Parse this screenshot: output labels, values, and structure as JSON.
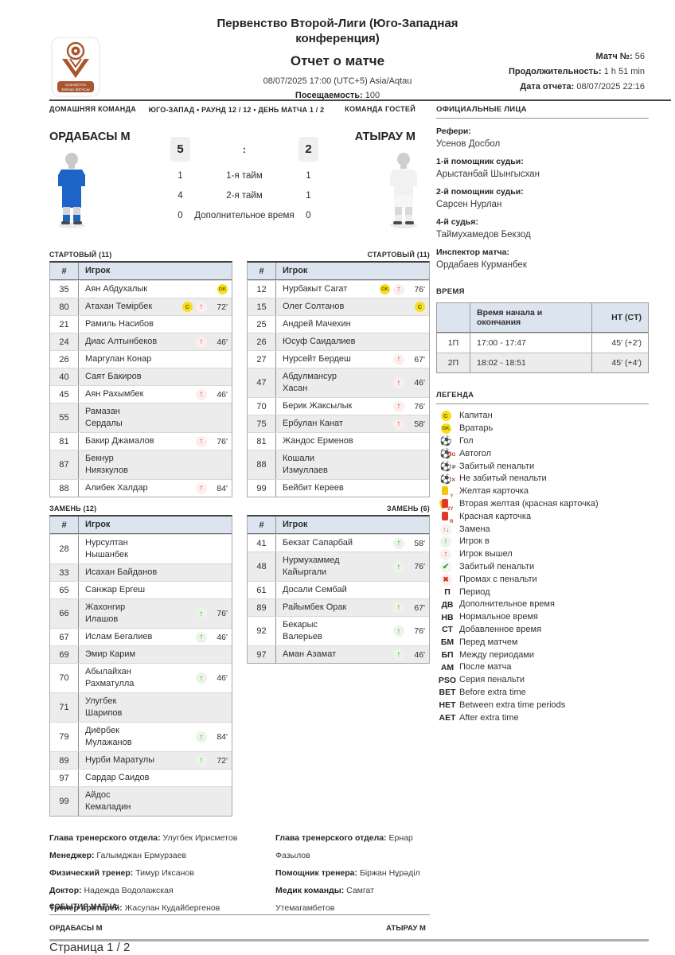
{
  "header": {
    "title": "Первенство Второй-Лиги (Юго-Западная конференция)",
    "subtitle": "Отчет о матче",
    "datetime": "08/07/2025 17:00 (UTC+5) Asia/Aqtau",
    "attendance_label": "Посещаемость:",
    "attendance_value": "100",
    "match_no_label": "Матч №:",
    "match_no_value": "56",
    "duration_label": "Продолжительность:",
    "duration_value": "1 h 51 min",
    "report_date_label": "Дата отчета:",
    "report_date_value": "08/07/2025 22:16",
    "logo_text_line1": "ҚАЗАҚСТАН",
    "logo_text_line2": "ЕКІНШІ ЛИГАСЫ"
  },
  "match": {
    "home_label": "ДОМАШНЯЯ КОМАНДА",
    "away_label": "КОМАНДА ГОСТЕЙ",
    "home_team": "ОРДАБАСЫ М",
    "away_team": "АТЫРАУ М",
    "round_info": "ЮГО-ЗАПАД • РАУНД 12 / 12 • ДЕНЬ МАТЧА 1 / 2",
    "home_score": "5",
    "away_score": "2",
    "score_separator": ":",
    "periods": [
      {
        "home": "1",
        "label": "1-я тайм",
        "away": "1"
      },
      {
        "home": "4",
        "label": "2-я тайм",
        "away": "1"
      },
      {
        "home": "0",
        "label": "Дополнительное время",
        "away": "0"
      }
    ]
  },
  "officials": {
    "title": "ОФИЦИАЛЬНЫЕ ЛИЦА",
    "entries": [
      {
        "role": "Рефери:",
        "name": "Усенов Досбол"
      },
      {
        "role": "1-й помощник судьи:",
        "name": "Арыстанбай Шынгысхан"
      },
      {
        "role": "2-й помощник судьи:",
        "name": "Сарсен Нурлан"
      },
      {
        "role": "4-й судья:",
        "name": "Таймухамедов Бекзод"
      },
      {
        "role": "Инспектор матча:",
        "name": "Ордабаев Курманбек"
      }
    ]
  },
  "time": {
    "title": "ВРЕМЯ",
    "col_time": "Время начала и окончания",
    "col_ht": "HT (CT)",
    "rows": [
      {
        "period": "1П",
        "time": "17:00 - 17:47",
        "ht": "45' (+2')"
      },
      {
        "period": "2П",
        "time": "18:02 - 18:51",
        "ht": "45' (+4')"
      }
    ]
  },
  "legend": {
    "title": "ЛЕГЕНДА",
    "items": [
      {
        "icon": "captain",
        "label": "Капитан"
      },
      {
        "icon": "goalkeeper",
        "label": "Вратарь"
      },
      {
        "icon": "goal",
        "label": "Гол"
      },
      {
        "icon": "own-goal",
        "label": "Автогол"
      },
      {
        "icon": "penalty-scored-ball",
        "label": "Забитый пенальти"
      },
      {
        "icon": "penalty-missed-ball",
        "label": "Не забитый пенальти"
      },
      {
        "icon": "yellow-card",
        "label": "Желтая карточка"
      },
      {
        "icon": "second-yellow-card",
        "label": "Вторая желтая (красная карточка)"
      },
      {
        "icon": "red-card",
        "label": "Красная карточка"
      },
      {
        "icon": "substitution",
        "label": "Замена"
      },
      {
        "icon": "player-in",
        "label": "Игрок в"
      },
      {
        "icon": "player-out",
        "label": "Игрок вышел"
      },
      {
        "icon": "penalty-scored-check",
        "label": "Забитый пенальти"
      },
      {
        "icon": "penalty-missed-cross",
        "label": "Промах с пенальти"
      },
      {
        "code": "П",
        "label": "Период"
      },
      {
        "code": "ДВ",
        "label": "Дополнительное время"
      },
      {
        "code": "НВ",
        "label": "Нормальное время"
      },
      {
        "code": "СТ",
        "label": "Добавленное время"
      },
      {
        "code": "БМ",
        "label": "Перед матчем"
      },
      {
        "code": "БП",
        "label": "Между периодами"
      },
      {
        "code": "АМ",
        "label": "После матча"
      },
      {
        "code": "PSO",
        "label": "Серия пенальти"
      },
      {
        "code": "BET",
        "label": "Before extra time"
      },
      {
        "code": "HET",
        "label": "Between extra time periods"
      },
      {
        "code": "AET",
        "label": "After extra time"
      }
    ]
  },
  "lineups": {
    "col_num": "#",
    "col_player": "Игрок",
    "home_starting_label": "СТАРТОВЫЙ (11)",
    "away_starting_label": "СТАРТОВЫЙ (11)",
    "home_subs_label": "ЗАМЕНЬ (12)",
    "away_subs_label": "ЗАМЕНЬ (6)",
    "home_starting": [
      {
        "num": "35",
        "name": "Аян Абдухалык",
        "badges": [
          "gk"
        ],
        "move": "",
        "minute": ""
      },
      {
        "num": "80",
        "name": "Атахан Темірбек",
        "badges": [
          "c"
        ],
        "move": "out",
        "minute": "72'"
      },
      {
        "num": "21",
        "name": "Рамиль Насибов",
        "badges": [],
        "move": "",
        "minute": ""
      },
      {
        "num": "24",
        "name": "Диас Алтынбеков",
        "badges": [],
        "move": "out",
        "minute": "46'"
      },
      {
        "num": "26",
        "name": "Маргулан Конар",
        "badges": [],
        "move": "",
        "minute": ""
      },
      {
        "num": "40",
        "name": "Саят Бакиров",
        "badges": [],
        "move": "",
        "minute": ""
      },
      {
        "num": "45",
        "name": "Аян Рахымбек",
        "badges": [],
        "move": "out",
        "minute": "46'"
      },
      {
        "num": "55",
        "name": "Рамазан\nСердалы",
        "badges": [],
        "move": "",
        "minute": ""
      },
      {
        "num": "81",
        "name": "Бакир Джамалов",
        "badges": [],
        "move": "out",
        "minute": "76'"
      },
      {
        "num": "87",
        "name": "Бекнур\nНиязкулов",
        "badges": [],
        "move": "",
        "minute": ""
      },
      {
        "num": "88",
        "name": "Алибек Халдар",
        "badges": [],
        "move": "out",
        "minute": "84'"
      }
    ],
    "away_starting": [
      {
        "num": "12",
        "name": "Нурбакыт Сагат",
        "badges": [
          "gk"
        ],
        "move": "out",
        "minute": "76'"
      },
      {
        "num": "15",
        "name": "Олег Солтанов",
        "badges": [
          "c"
        ],
        "move": "",
        "minute": ""
      },
      {
        "num": "25",
        "name": "Андрей Мачехин",
        "badges": [],
        "move": "",
        "minute": ""
      },
      {
        "num": "26",
        "name": "Юсуф Саидалиев",
        "badges": [],
        "move": "",
        "minute": ""
      },
      {
        "num": "27",
        "name": "Нурсейт Бердеш",
        "badges": [],
        "move": "out",
        "minute": "67'"
      },
      {
        "num": "47",
        "name": "Абдулмансур\nХасан",
        "badges": [],
        "move": "out",
        "minute": "46'"
      },
      {
        "num": "70",
        "name": "Берик Жаксылык",
        "badges": [],
        "move": "out",
        "minute": "76'"
      },
      {
        "num": "75",
        "name": "Ербулан Канат",
        "badges": [],
        "move": "out",
        "minute": "58'"
      },
      {
        "num": "81",
        "name": "Жандос Ерменов",
        "badges": [],
        "move": "",
        "minute": ""
      },
      {
        "num": "88",
        "name": "Кошали\nИзмуллаев",
        "badges": [],
        "move": "",
        "minute": ""
      },
      {
        "num": "99",
        "name": "Бейбит Кереев",
        "badges": [],
        "move": "",
        "minute": ""
      }
    ],
    "home_subs": [
      {
        "num": "28",
        "name": "Нурсултан\nНышанбек",
        "badges": [],
        "move": "",
        "minute": ""
      },
      {
        "num": "33",
        "name": "Исахан Байданов",
        "badges": [],
        "move": "",
        "minute": ""
      },
      {
        "num": "65",
        "name": "Санжар Ергеш",
        "badges": [],
        "move": "",
        "minute": ""
      },
      {
        "num": "66",
        "name": "Жахонгир\nИлашов",
        "badges": [],
        "move": "in",
        "minute": "76'"
      },
      {
        "num": "67",
        "name": "Ислам Бегалиев",
        "badges": [],
        "move": "in",
        "minute": "46'"
      },
      {
        "num": "69",
        "name": "Эмир Карим",
        "badges": [],
        "move": "",
        "minute": ""
      },
      {
        "num": "70",
        "name": "Абылайхан\nРахматулла",
        "badges": [],
        "move": "in",
        "minute": "46'"
      },
      {
        "num": "71",
        "name": "Улугбек\nШарипов",
        "badges": [],
        "move": "",
        "minute": ""
      },
      {
        "num": "79",
        "name": "Диёрбек\nМулажанов",
        "badges": [],
        "move": "in",
        "minute": "84'"
      },
      {
        "num": "89",
        "name": "Нурби Маратулы",
        "badges": [],
        "move": "in",
        "minute": "72'"
      },
      {
        "num": "97",
        "name": "Сардар Саидов",
        "badges": [],
        "move": "",
        "minute": ""
      },
      {
        "num": "99",
        "name": "Айдос\nКемаладин",
        "badges": [],
        "move": "",
        "minute": ""
      }
    ],
    "away_subs": [
      {
        "num": "41",
        "name": "Бекзат Сапарбай",
        "badges": [],
        "move": "in",
        "minute": "58'"
      },
      {
        "num": "48",
        "name": "Нурмухаммед\nКайыргали",
        "badges": [],
        "move": "in",
        "minute": "76'"
      },
      {
        "num": "61",
        "name": "Досали Сембай",
        "badges": [],
        "move": "",
        "minute": ""
      },
      {
        "num": "89",
        "name": "Райымбек Орак",
        "badges": [],
        "move": "in",
        "minute": "67'"
      },
      {
        "num": "92",
        "name": "Бекарыс\nВалерьев",
        "badges": [],
        "move": "in",
        "minute": "76'"
      },
      {
        "num": "97",
        "name": "Аман Азамат",
        "badges": [],
        "move": "in",
        "minute": "46'"
      }
    ]
  },
  "staff": {
    "home": [
      {
        "role": "Глава тренерского отдела:",
        "name": "Улугбек Ирисметов"
      },
      {
        "role": "Менеджер:",
        "name": "Галымджан Ермурзаев"
      },
      {
        "role": "Физический тренер:",
        "name": "Тимур Иксанов"
      },
      {
        "role": "Доктор:",
        "name": "Надежда Водолажская"
      },
      {
        "role": "Тренер вратарей:",
        "name": "Жасулан Кудайбергенов"
      }
    ],
    "away": [
      {
        "role": "Глава тренерского отдела:",
        "name": "Ернар Фазылов"
      },
      {
        "role": "Помощник тренера:",
        "name": "Біржан Нұрәділ"
      },
      {
        "role": "Медик команды:",
        "name": "Самгат Утемагамбетов"
      }
    ]
  },
  "events": {
    "title": "СОБЫТИЯ МАТЧА",
    "home_team": "ОРДАБАСЫ М",
    "away_team": "АТЫРАУ М"
  },
  "footer": {
    "page": "Страница 1 / 2"
  },
  "colors": {
    "badge_yellow": "#f6df1b",
    "red": "#cd4335",
    "green": "#3f9c3c",
    "table_header_bg": "#dce4ef",
    "row_alt_bg": "#ececec",
    "home_jersey_blue": "#1d63c8",
    "logo_brown": "#a9552f"
  }
}
